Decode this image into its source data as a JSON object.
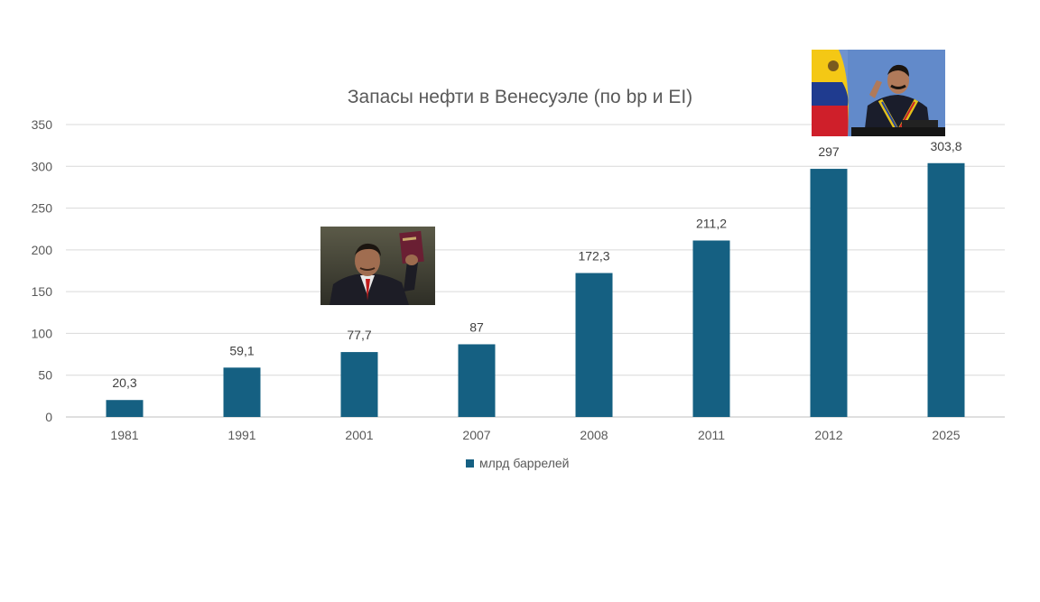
{
  "chart_data": {
    "type": "bar",
    "title": "Запасы нефти в Венесуэле (по bp и EI)",
    "categories": [
      "1981",
      "1991",
      "2001",
      "2007",
      "2008",
      "2011",
      "2012",
      "2025"
    ],
    "series": [
      {
        "name": "млрд баррелей",
        "values": [
          20.3,
          59.1,
          77.7,
          87,
          172.3,
          211.2,
          297,
          303.8
        ],
        "labels": [
          "20,3",
          "59,1",
          "77,7",
          "87",
          "172,3",
          "211,2",
          "297",
          "303,8"
        ],
        "color": "#156082"
      }
    ],
    "ylim": [
      0,
      350
    ],
    "yticks": [
      "0",
      "50",
      "100",
      "150",
      "200",
      "250",
      "300",
      "350"
    ],
    "grid": true,
    "legend_position": "bottom",
    "colors": {
      "bar": "#156082",
      "grid": "#d9d9d9",
      "text": "#595959",
      "title": "#595959"
    }
  }
}
